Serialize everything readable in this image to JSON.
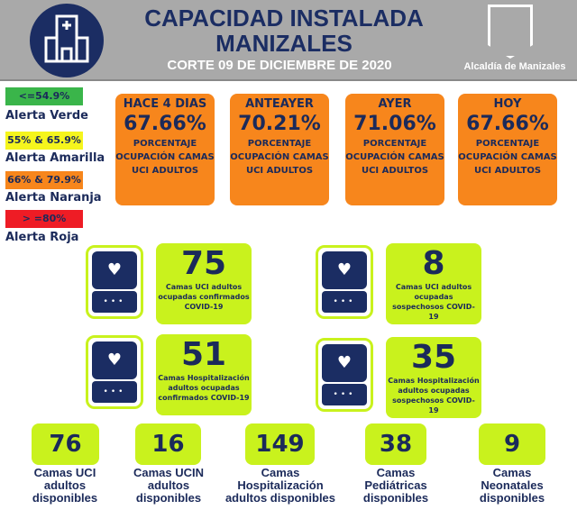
{
  "header": {
    "title_line1": "CAPACIDAD INSTALADA",
    "title_line2": "MANIZALES",
    "subtitle": "CORTE 09 DE DICIEMBRE DE 2020",
    "org": "Alcaldía de Manizales",
    "logo_icon": "hospital-icon"
  },
  "legend": [
    {
      "range": "<=54.9%",
      "label": "Alerta Verde",
      "color": "#3ab54a"
    },
    {
      "range": "55% & 65.9%",
      "label": "Alerta Amarilla",
      "color": "#f5f51d"
    },
    {
      "range": "66% & 79.9%",
      "label": "Alerta Naranja",
      "color": "#f7861c"
    },
    {
      "range": "> =80%",
      "label": "Alerta Roja",
      "color": "#ee1c25"
    }
  ],
  "occupancy": [
    {
      "period": "HACE 4 DIAS",
      "value": "67.66%",
      "desc": "PORCENTAJE OCUPACIÓN CAMAS UCI ADULTOS"
    },
    {
      "period": "ANTEAYER",
      "value": "70.21%",
      "desc": "PORCENTAJE OCUPACIÓN CAMAS UCI ADULTOS"
    },
    {
      "period": "AYER",
      "value": "71.06%",
      "desc": "PORCENTAJE OCUPACIÓN CAMAS UCI ADULTOS"
    },
    {
      "period": "HOY",
      "value": "67.66%",
      "desc": "PORCENTAJE OCUPACIÓN CAMAS UCI ADULTOS"
    }
  ],
  "occupied": [
    {
      "value": "75",
      "desc": "Camas UCI adultos ocupadas confirmados COVID-19"
    },
    {
      "value": "8",
      "desc": "Camas UCI adultos ocupadas sospechosos COVID-19"
    },
    {
      "value": "51",
      "desc": "Camas Hospitalización adultos ocupadas confirmados COVID-19"
    },
    {
      "value": "35",
      "desc": "Camas Hospitalización adultos ocupadas sospechosos COVID-19"
    }
  ],
  "available": [
    {
      "value": "76",
      "label": "Camas UCI adultos disponibles"
    },
    {
      "value": "16",
      "label": "Camas UCIN adultos disponibles"
    },
    {
      "value": "149",
      "label": "Camas Hospitalización adultos disponibles"
    },
    {
      "value": "38",
      "label": "Camas Pediátricas disponibles"
    },
    {
      "value": "9",
      "label": "Camas Neonatales disponibles"
    }
  ]
}
